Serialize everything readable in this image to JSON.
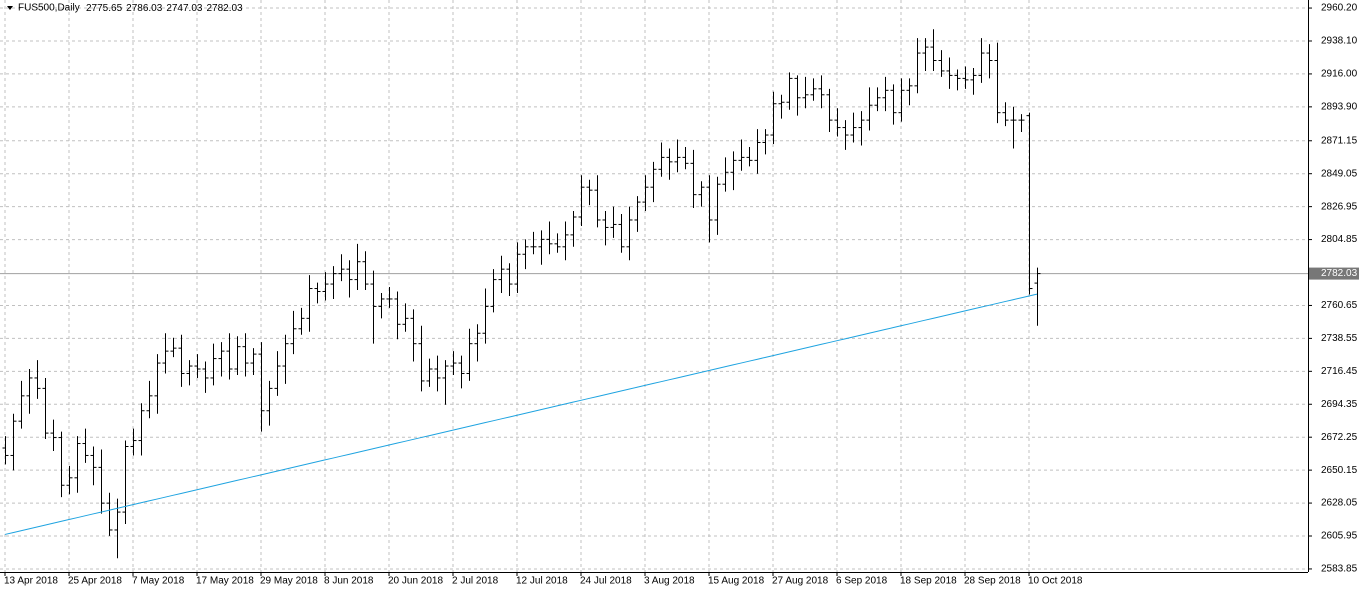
{
  "chart_data": {
    "type": "ohlc",
    "title": "FUS500,Daily",
    "categories": [
      "13 Apr 2018",
      null,
      null,
      null,
      null,
      null,
      null,
      null,
      "25 Apr 2018",
      null,
      null,
      null,
      null,
      null,
      null,
      null,
      "7 May 2018",
      null,
      null,
      null,
      null,
      null,
      null,
      null,
      "17 May 2018",
      null,
      null,
      null,
      null,
      null,
      null,
      null,
      "29 May 2018",
      null,
      null,
      null,
      null,
      null,
      null,
      null,
      "8 Jun 2018",
      null,
      null,
      null,
      null,
      null,
      null,
      null,
      "20 Jun 2018",
      null,
      null,
      null,
      null,
      null,
      null,
      null,
      "2 Jul 2018",
      null,
      null,
      null,
      null,
      null,
      null,
      null,
      "12 Jul 2018",
      null,
      null,
      null,
      null,
      null,
      null,
      null,
      "24 Jul 2018",
      null,
      null,
      null,
      null,
      null,
      null,
      null,
      "3 Aug 2018",
      null,
      null,
      null,
      null,
      null,
      null,
      null,
      "15 Aug 2018",
      null,
      null,
      null,
      null,
      null,
      null,
      null,
      "27 Aug 2018",
      null,
      null,
      null,
      null,
      null,
      null,
      null,
      "6 Sep 2018",
      null,
      null,
      null,
      null,
      null,
      null,
      null,
      "18 Sep 2018",
      null,
      null,
      null,
      null,
      null,
      null,
      null,
      "28 Sep 2018",
      null,
      null,
      null,
      null,
      null,
      null,
      null,
      "10 Oct 2018",
      null
    ],
    "open": [
      2665,
      2660,
      2683,
      2700,
      2712,
      2705,
      2675,
      2672,
      2640,
      2645,
      2668,
      2660,
      2652,
      2628,
      2610,
      2622,
      2666,
      2670,
      2690,
      2700,
      2722,
      2730,
      2732,
      2715,
      2720,
      2718,
      2712,
      2725,
      2730,
      2718,
      2733,
      2722,
      2728,
      2690,
      2705,
      2720,
      2735,
      2745,
      2752,
      2772,
      2770,
      2775,
      2782,
      2785,
      2778,
      2790,
      2775,
      2760,
      2765,
      2765,
      2748,
      2752,
      2735,
      2710,
      2718,
      2712,
      2720,
      2722,
      2715,
      2735,
      2742,
      2760,
      2778,
      2785,
      2775,
      2795,
      2800,
      2800,
      2805,
      2802,
      2800,
      2808,
      2820,
      2840,
      2838,
      2818,
      2813,
      2815,
      2800,
      2818,
      2830,
      2840,
      2852,
      2860,
      2857,
      2860,
      2856,
      2835,
      2840,
      2818,
      2842,
      2850,
      2858,
      2860,
      2858,
      2870,
      2875,
      2896,
      2897,
      2913,
      2900,
      2902,
      2906,
      2902,
      2885,
      2880,
      2875,
      2880,
      2885,
      2895,
      2900,
      2905,
      2890,
      2905,
      2908,
      2930,
      2934,
      2925,
      2918,
      2915,
      2913,
      2912,
      2915,
      2930,
      2925,
      2890,
      2885,
      2885,
      2888,
      2775.65
    ],
    "high": [
      2673,
      2688,
      2710,
      2718,
      2724,
      2712,
      2684,
      2676,
      2653,
      2673,
      2678,
      2666,
      2664,
      2635,
      2631,
      2670,
      2678,
      2695,
      2710,
      2728,
      2742,
      2739,
      2741,
      2724,
      2728,
      2723,
      2735,
      2736,
      2742,
      2740,
      2742,
      2732,
      2736,
      2710,
      2730,
      2741,
      2757,
      2759,
      2781,
      2776,
      2783,
      2787,
      2795,
      2791,
      2802,
      2797,
      2784,
      2769,
      2773,
      2770,
      2762,
      2758,
      2747,
      2725,
      2727,
      2724,
      2730,
      2727,
      2745,
      2748,
      2772,
      2785,
      2794,
      2789,
      2803,
      2805,
      2810,
      2811,
      2817,
      2809,
      2817,
      2824,
      2848,
      2845,
      2848,
      2824,
      2827,
      2822,
      2827,
      2834,
      2848,
      2857,
      2870,
      2866,
      2872,
      2867,
      2865,
      2844,
      2848,
      2847,
      2860,
      2864,
      2872,
      2867,
      2879,
      2879,
      2904,
      2902,
      2917,
      2915,
      2914,
      2913,
      2915,
      2906,
      2893,
      2885,
      2890,
      2891,
      2907,
      2907,
      2914,
      2909,
      2913,
      2913,
      2940,
      2940,
      2946,
      2932,
      2927,
      2919,
      2921,
      2920,
      2940,
      2936,
      2937,
      2897,
      2894,
      2889,
      2890,
      2786.03
    ],
    "low": [
      2654,
      2650,
      2678,
      2688,
      2698,
      2671,
      2663,
      2632,
      2634,
      2635,
      2655,
      2640,
      2621,
      2606,
      2591,
      2614,
      2660,
      2660,
      2685,
      2688,
      2715,
      2726,
      2706,
      2707,
      2712,
      2702,
      2707,
      2713,
      2711,
      2714,
      2713,
      2714,
      2676,
      2680,
      2700,
      2708,
      2728,
      2741,
      2743,
      2762,
      2764,
      2765,
      2777,
      2766,
      2771,
      2771,
      2735,
      2752,
      2759,
      2738,
      2743,
      2723,
      2703,
      2706,
      2703,
      2694,
      2714,
      2705,
      2710,
      2723,
      2735,
      2756,
      2769,
      2767,
      2769,
      2785,
      2795,
      2788,
      2795,
      2796,
      2791,
      2800,
      2814,
      2828,
      2813,
      2801,
      2806,
      2796,
      2791,
      2810,
      2824,
      2830,
      2847,
      2845,
      2850,
      2852,
      2826,
      2827,
      2803,
      2808,
      2837,
      2838,
      2851,
      2854,
      2849,
      2862,
      2869,
      2886,
      2892,
      2888,
      2893,
      2898,
      2893,
      2877,
      2874,
      2865,
      2870,
      2868,
      2878,
      2891,
      2891,
      2882,
      2884,
      2895,
      2903,
      2918,
      2918,
      2914,
      2906,
      2905,
      2906,
      2902,
      2910,
      2913,
      2883,
      2881,
      2866,
      2877,
      2768,
      2747.03
    ],
    "close": [
      2660,
      2683,
      2700,
      2712,
      2705,
      2675,
      2672,
      2640,
      2645,
      2668,
      2660,
      2652,
      2628,
      2610,
      2622,
      2666,
      2670,
      2690,
      2700,
      2722,
      2730,
      2732,
      2715,
      2720,
      2718,
      2712,
      2725,
      2730,
      2718,
      2733,
      2722,
      2728,
      2690,
      2705,
      2720,
      2735,
      2745,
      2752,
      2772,
      2770,
      2775,
      2782,
      2785,
      2778,
      2790,
      2775,
      2760,
      2765,
      2765,
      2748,
      2752,
      2735,
      2710,
      2718,
      2712,
      2720,
      2722,
      2715,
      2735,
      2742,
      2760,
      2778,
      2785,
      2775,
      2795,
      2800,
      2800,
      2805,
      2802,
      2800,
      2808,
      2820,
      2840,
      2838,
      2818,
      2813,
      2815,
      2800,
      2818,
      2830,
      2840,
      2852,
      2860,
      2857,
      2860,
      2856,
      2835,
      2840,
      2818,
      2842,
      2850,
      2858,
      2860,
      2858,
      2870,
      2875,
      2896,
      2897,
      2913,
      2900,
      2902,
      2906,
      2902,
      2885,
      2880,
      2875,
      2880,
      2885,
      2895,
      2900,
      2905,
      2890,
      2905,
      2908,
      2930,
      2934,
      2925,
      2918,
      2915,
      2913,
      2912,
      2915,
      2930,
      2925,
      2890,
      2885,
      2885,
      2885,
      2772,
      2782.03
    ],
    "bar_color": "#000000",
    "ma_color": "#1ea3e0",
    "ma_values": [
      2607,
      2608.25,
      2609.5,
      2610.75,
      2612,
      2613.25,
      2614.5,
      2615.75,
      2617,
      2618.25,
      2619.5,
      2620.75,
      2622,
      2623.25,
      2624.5,
      2625.75,
      2627,
      2628.25,
      2629.5,
      2630.75,
      2632,
      2633.25,
      2634.5,
      2635.75,
      2637,
      2638.25,
      2639.5,
      2640.75,
      2642,
      2643.25,
      2644.5,
      2645.75,
      2647,
      2648.25,
      2649.5,
      2650.75,
      2652,
      2653.25,
      2654.5,
      2655.75,
      2657,
      2658.25,
      2659.5,
      2660.75,
      2662,
      2663.25,
      2664.5,
      2665.75,
      2667,
      2668.25,
      2669.5,
      2670.75,
      2672,
      2673.25,
      2674.5,
      2675.75,
      2677,
      2678.25,
      2679.5,
      2680.75,
      2682,
      2683.25,
      2684.5,
      2685.75,
      2687,
      2688.25,
      2689.5,
      2690.75,
      2692,
      2693.25,
      2694.5,
      2695.75,
      2697,
      2698.25,
      2699.5,
      2700.75,
      2702,
      2703.25,
      2704.5,
      2705.75,
      2707,
      2708.25,
      2709.5,
      2710.75,
      2712,
      2713.25,
      2714.5,
      2715.75,
      2717,
      2718.25,
      2719.5,
      2720.75,
      2722,
      2723.25,
      2724.5,
      2725.75,
      2727,
      2728.25,
      2729.5,
      2730.75,
      2732,
      2733.25,
      2734.5,
      2735.75,
      2737,
      2738.25,
      2739.5,
      2740.75,
      2742,
      2743.25,
      2744.5,
      2745.75,
      2747,
      2748.25,
      2749.5,
      2750.75,
      2752,
      2753.25,
      2754.5,
      2755.75,
      2757,
      2758.25,
      2759.5,
      2760.75,
      2762,
      2763.25,
      2764.5,
      2765.75,
      2767,
      2768.25
    ],
    "ylim": [
      2581.8,
      2965.6
    ],
    "yticks": [
      {
        "value": 2960.2,
        "label": "2960.20"
      },
      {
        "value": 2938.1,
        "label": "2938.10"
      },
      {
        "value": 2916,
        "label": "2916.00"
      },
      {
        "value": 2893.9,
        "label": "2893.90"
      },
      {
        "value": 2871.15,
        "label": "2871.15"
      },
      {
        "value": 2849.05,
        "label": "2849.05"
      },
      {
        "value": 2826.95,
        "label": "2826.95"
      },
      {
        "value": 2804.85,
        "label": "2804.85"
      },
      {
        "value": 2760.65,
        "label": "2760.65"
      },
      {
        "value": 2738.55,
        "label": "2738.55"
      },
      {
        "value": 2716.45,
        "label": "2716.45"
      },
      {
        "value": 2694.35,
        "label": "2694.35"
      },
      {
        "value": 2672.25,
        "label": "2672.25"
      },
      {
        "value": 2650.15,
        "label": "2650.15"
      },
      {
        "value": 2628.05,
        "label": "2628.05"
      },
      {
        "value": 2605.95,
        "label": "2605.95"
      },
      {
        "value": 2583.85,
        "label": "2583.85"
      }
    ],
    "grid": true
  }
}
